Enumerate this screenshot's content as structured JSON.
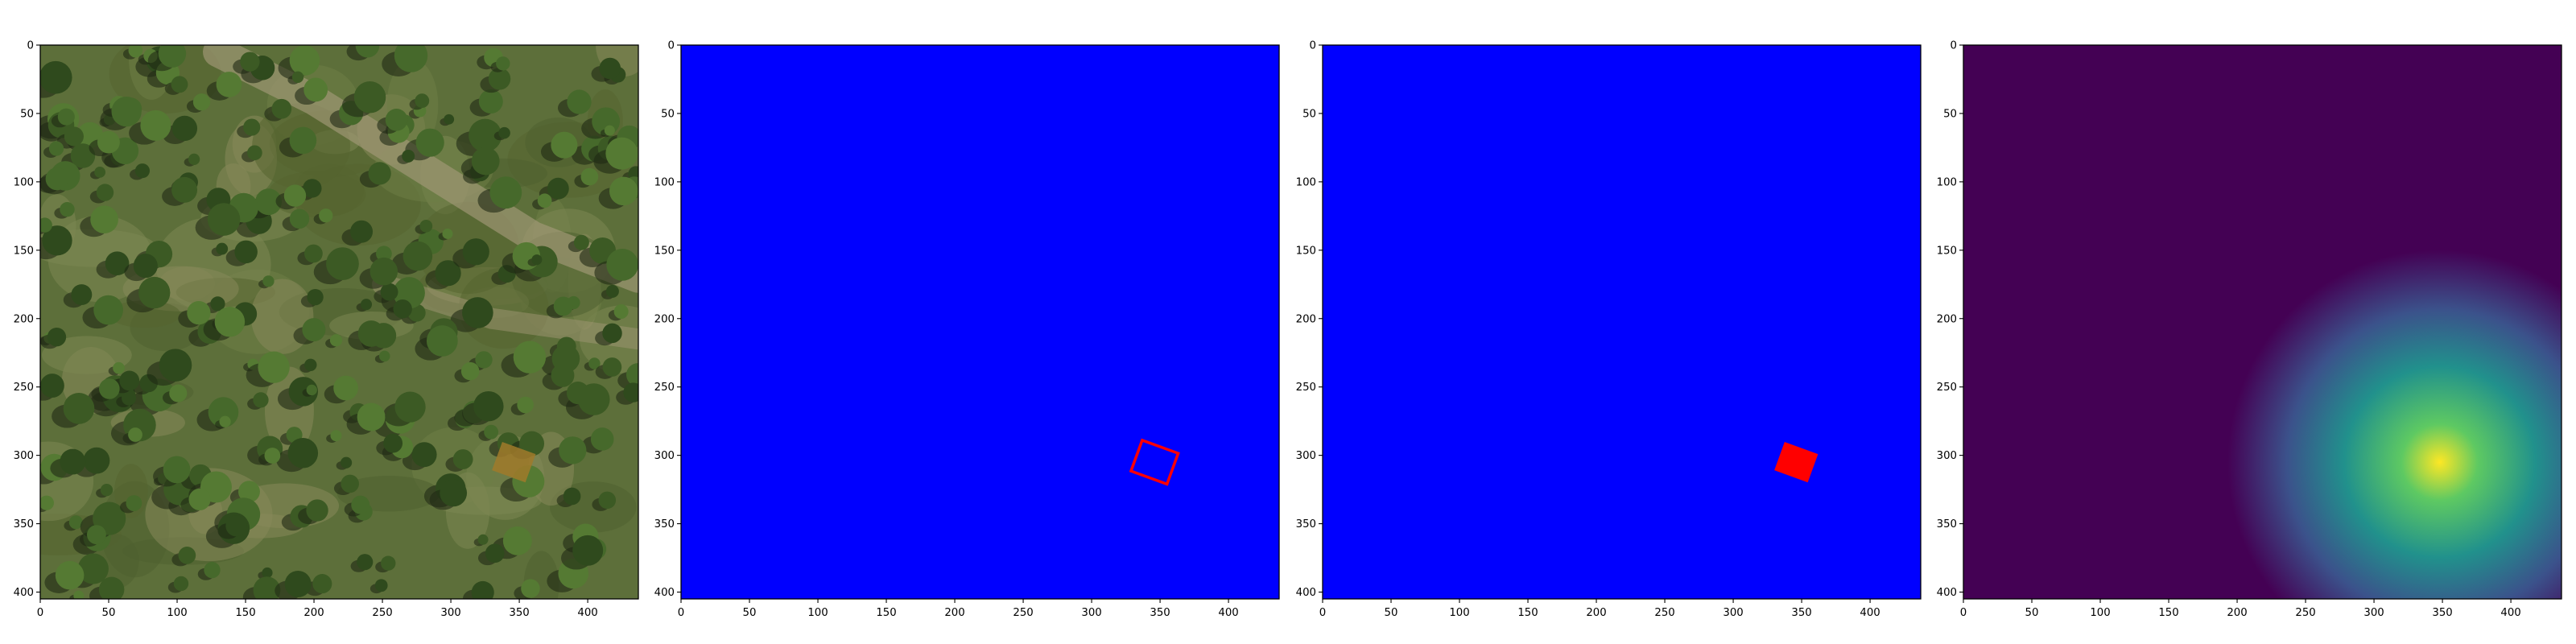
{
  "figure": {
    "background": "#ffffff"
  },
  "chart_data": [
    {
      "type": "heatmap",
      "content": "aerial-photo",
      "xlim": [
        0,
        437
      ],
      "ylim": [
        405,
        0
      ],
      "xticks": [
        0,
        50,
        100,
        150,
        200,
        250,
        300,
        350,
        400
      ],
      "yticks": [
        0,
        50,
        100,
        150,
        200,
        250,
        300,
        350,
        400
      ],
      "tick_labels_x": [
        "0",
        "50",
        "100",
        "150",
        "200",
        "250",
        "300",
        "350",
        "400"
      ],
      "tick_labels_y": [
        "0",
        "50",
        "100",
        "150",
        "200",
        "250",
        "300",
        "350",
        "400"
      ],
      "highlight": {
        "center": [
          346,
          305
        ],
        "half_size": [
          13,
          11
        ],
        "angle_deg": 20,
        "color": "#a07a2a"
      }
    },
    {
      "type": "heatmap",
      "content": "outline-mask",
      "xlim": [
        0,
        437
      ],
      "ylim": [
        405,
        0
      ],
      "background_color": "#0000ff",
      "xticks": [
        0,
        50,
        100,
        150,
        200,
        250,
        300,
        350,
        400
      ],
      "yticks": [
        0,
        50,
        100,
        150,
        200,
        250,
        300,
        350,
        400
      ],
      "tick_labels_x": [
        "0",
        "50",
        "100",
        "150",
        "200",
        "250",
        "300",
        "350",
        "400"
      ],
      "tick_labels_y": [
        "0",
        "50",
        "100",
        "150",
        "200",
        "250",
        "300",
        "350",
        "400"
      ],
      "box": {
        "center": [
          346,
          305
        ],
        "half_size": [
          14,
          12
        ],
        "angle_deg": 20,
        "color": "#ff0000",
        "filled": false
      }
    },
    {
      "type": "heatmap",
      "content": "filled-mask",
      "xlim": [
        0,
        437
      ],
      "ylim": [
        405,
        0
      ],
      "background_color": "#0000ff",
      "xticks": [
        0,
        50,
        100,
        150,
        200,
        250,
        300,
        350,
        400
      ],
      "yticks": [
        0,
        50,
        100,
        150,
        200,
        250,
        300,
        350,
        400
      ],
      "tick_labels_x": [
        "0",
        "50",
        "100",
        "150",
        "200",
        "250",
        "300",
        "350",
        "400"
      ],
      "tick_labels_y": [
        "0",
        "50",
        "100",
        "150",
        "200",
        "250",
        "300",
        "350",
        "400"
      ],
      "box": {
        "center": [
          346,
          305
        ],
        "half_size": [
          13,
          11
        ],
        "angle_deg": 20,
        "color": "#ff0000",
        "filled": true
      }
    },
    {
      "type": "heatmap",
      "content": "gaussian-heatmap",
      "colormap": "viridis",
      "xlim": [
        0,
        437
      ],
      "ylim": [
        405,
        0
      ],
      "xticks": [
        0,
        50,
        100,
        150,
        200,
        250,
        300,
        350,
        400
      ],
      "yticks": [
        0,
        50,
        100,
        150,
        200,
        250,
        300,
        350,
        400
      ],
      "tick_labels_x": [
        "0",
        "50",
        "100",
        "150",
        "200",
        "250",
        "300",
        "350",
        "400"
      ],
      "tick_labels_y": [
        "0",
        "50",
        "100",
        "150",
        "200",
        "250",
        "300",
        "350",
        "400"
      ],
      "peak": {
        "center": [
          348,
          305
        ],
        "radius": 155
      },
      "colormap_stops": [
        "#440154",
        "#3b528b",
        "#21918c",
        "#5ec962",
        "#fde725"
      ]
    }
  ]
}
